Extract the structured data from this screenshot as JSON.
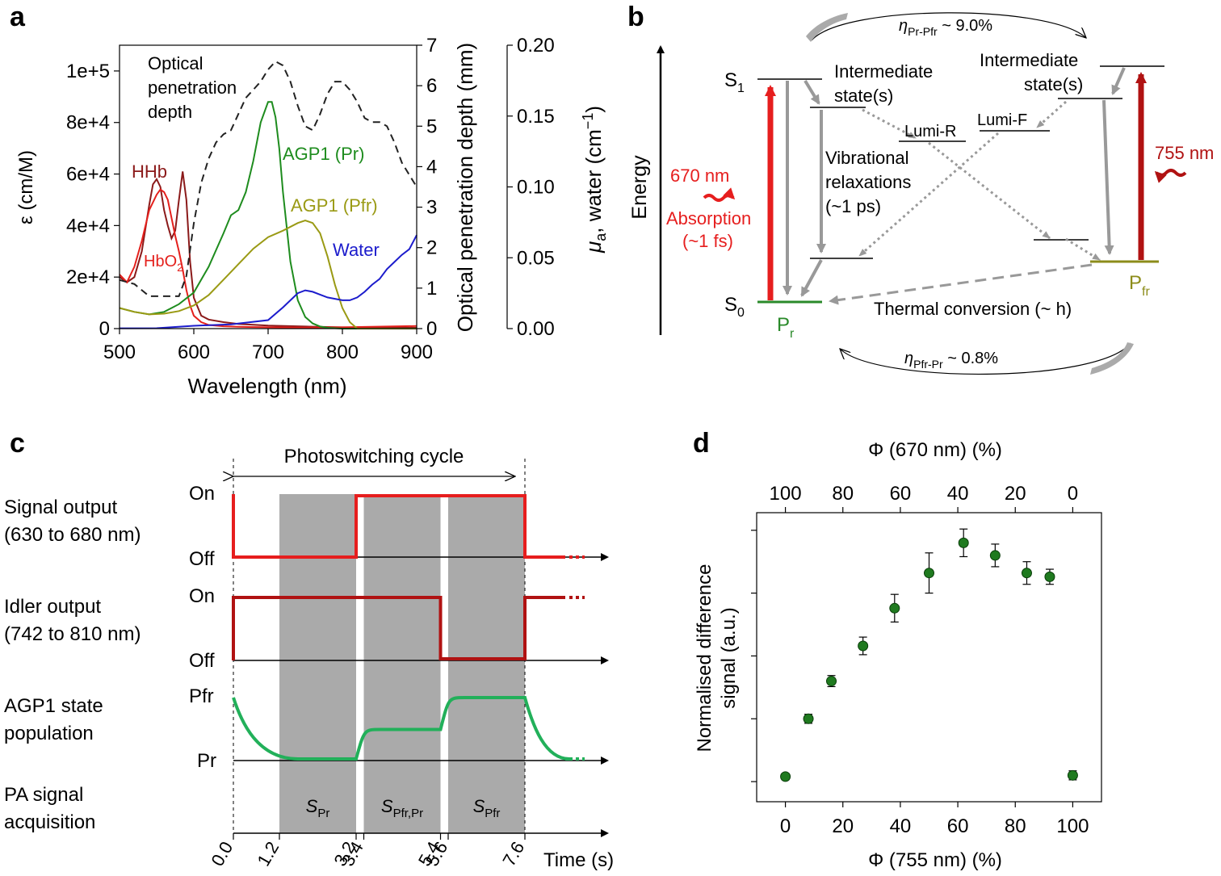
{
  "panel_labels": {
    "a": "a",
    "b": "b",
    "c": "c",
    "d": "d"
  },
  "colors": {
    "hhb": "#8b1a1a",
    "hbo2": "#e4201c",
    "agp1_pr": "#1e8c1e",
    "agp1_pfr": "#9a9a14",
    "water": "#1c1ccc",
    "red": "#e61e1e",
    "darkred": "#b01212",
    "green": "#22b05a",
    "gray": "#aaaaaa",
    "marker": "#1f7a1f",
    "pfr_line": "#8c8c1a"
  },
  "chart_data": [
    {
      "id": "a",
      "type": "line",
      "xlabel": "Wavelength (nm)",
      "ylabel_left": "ε (cm/M)",
      "ylabel_right1": "Optical penetration depth (mm)",
      "ylabel_right2_main": "μ",
      "ylabel_right2_sub": "a",
      "ylabel_right2_rest": ", water (cm",
      "ylabel_right2_sup": "−1",
      "ylabel_right2_end": ")",
      "xlim": [
        500,
        900
      ],
      "ylim_left": [
        0,
        110000
      ],
      "ylim_right1": [
        0,
        7
      ],
      "ylim_right2": [
        0,
        0.2
      ],
      "x_ticks": [
        "500",
        "600",
        "700",
        "800",
        "900"
      ],
      "x_tick_values": [
        500,
        600,
        700,
        800,
        900
      ],
      "y_left_ticks": [
        "0",
        "2e+4",
        "4e+4",
        "6e+4",
        "8e+4",
        "1e+5"
      ],
      "y_left_tick_values": [
        0,
        20000,
        40000,
        60000,
        80000,
        100000
      ],
      "y_right1_ticks": [
        "0",
        "1",
        "2",
        "3",
        "4",
        "5",
        "6",
        "7"
      ],
      "y_right1_tick_values": [
        0,
        1,
        2,
        3,
        4,
        5,
        6,
        7
      ],
      "y_right2_ticks": [
        "0.00",
        "0.05",
        "0.10",
        "0.15",
        "0.20"
      ],
      "y_right2_tick_values": [
        0,
        0.05,
        0.1,
        0.15,
        0.2
      ],
      "labels": {
        "optical_line1": "Optical",
        "optical_line2": "penetration",
        "optical_line3": "depth",
        "hhb": "HHb",
        "hbo2_main": "HbO",
        "hbo2_sub": "2",
        "agp1_pr": "AGP1 (Pr)",
        "agp1_pfr": "AGP1 (Pfr)",
        "water": "Water"
      },
      "series": [
        {
          "name": "HHb",
          "axis": "left",
          "color": "#8b1a1a",
          "x": [
            500,
            510,
            520,
            530,
            540,
            545,
            550,
            555,
            560,
            565,
            570,
            575,
            580,
            585,
            590,
            595,
            600,
            610,
            620,
            640,
            660,
            700,
            750,
            800,
            900
          ],
          "y": [
            20000,
            18000,
            20000,
            30000,
            48000,
            56000,
            58000,
            55000,
            46000,
            40000,
            35000,
            38000,
            50000,
            61000,
            50000,
            26000,
            12000,
            5000,
            3500,
            2500,
            1800,
            1200,
            800,
            500,
            300
          ]
        },
        {
          "name": "HbO2",
          "axis": "left",
          "color": "#e4201c",
          "x": [
            500,
            510,
            520,
            530,
            540,
            550,
            555,
            560,
            565,
            570,
            575,
            580,
            585,
            590,
            595,
            600,
            610,
            620,
            640,
            660,
            680,
            700,
            750,
            800,
            900
          ],
          "y": [
            21000,
            18000,
            24000,
            34000,
            46000,
            52000,
            54000,
            53000,
            50000,
            43000,
            36000,
            30000,
            23000,
            15000,
            9000,
            5000,
            2500,
            1400,
            900,
            700,
            600,
            500,
            400,
            500,
            1000
          ]
        },
        {
          "name": "Optical penetration depth",
          "axis": "right1",
          "dashed": true,
          "color": "#222222",
          "x": [
            500,
            520,
            540,
            560,
            580,
            590,
            600,
            610,
            620,
            630,
            640,
            650,
            660,
            670,
            680,
            690,
            700,
            710,
            720,
            730,
            740,
            750,
            760,
            770,
            780,
            790,
            800,
            810,
            820,
            830,
            840,
            850,
            860,
            870,
            880,
            890,
            900
          ],
          "y": [
            1.2,
            1.1,
            0.8,
            0.8,
            0.8,
            1.3,
            2.6,
            3.6,
            4.2,
            4.6,
            4.8,
            4.9,
            5.3,
            5.7,
            5.9,
            6.1,
            6.4,
            6.6,
            6.5,
            6.1,
            5.5,
            5.0,
            4.9,
            5.3,
            5.8,
            6.1,
            6.1,
            5.9,
            5.6,
            5.2,
            5.1,
            5.1,
            5.0,
            4.6,
            4.1,
            3.8,
            3.5
          ]
        },
        {
          "name": "AGP1 (Pr)",
          "axis": "left",
          "color": "#1e8c1e",
          "x": [
            500,
            520,
            540,
            560,
            580,
            600,
            620,
            640,
            650,
            660,
            670,
            680,
            690,
            700,
            705,
            710,
            715,
            720,
            730,
            740,
            750,
            760,
            770,
            780,
            800,
            900
          ],
          "y": [
            8000,
            6500,
            5500,
            6500,
            9500,
            14000,
            24000,
            37000,
            44000,
            46000,
            53000,
            65000,
            80000,
            88000,
            88000,
            82000,
            70000,
            53000,
            26000,
            11000,
            4500,
            2000,
            800,
            300,
            0,
            0
          ]
        },
        {
          "name": "AGP1 (Pfr)",
          "axis": "left",
          "color": "#9a9a14",
          "x": [
            500,
            520,
            540,
            560,
            580,
            600,
            620,
            640,
            660,
            680,
            700,
            720,
            740,
            750,
            760,
            770,
            780,
            790,
            800,
            810,
            820,
            900
          ],
          "y": [
            8000,
            6500,
            5500,
            5800,
            6800,
            9000,
            13000,
            19000,
            25000,
            31000,
            35500,
            38000,
            41000,
            42000,
            41000,
            37000,
            28000,
            17000,
            8000,
            2500,
            0,
            0
          ]
        },
        {
          "name": "Water",
          "axis": "right2",
          "color": "#1c1ccc",
          "x": [
            500,
            550,
            600,
            650,
            700,
            720,
            740,
            750,
            760,
            770,
            780,
            790,
            800,
            810,
            820,
            830,
            840,
            850,
            860,
            870,
            880,
            890,
            900
          ],
          "y": [
            0.0002,
            0.0003,
            0.002,
            0.003,
            0.006,
            0.015,
            0.025,
            0.027,
            0.026,
            0.024,
            0.022,
            0.021,
            0.02,
            0.02,
            0.022,
            0.026,
            0.031,
            0.035,
            0.042,
            0.047,
            0.052,
            0.056,
            0.066
          ]
        }
      ]
    },
    {
      "id": "b",
      "type": "diagram",
      "energy_label": "Energy",
      "s1_main": "S",
      "s1_sub": "1",
      "s0_main": "S",
      "s0_sub": "0",
      "pr_main": "P",
      "pr_sub": "r",
      "pfr_main": "P",
      "pfr_sub": "fr",
      "inter_left_line1": "Intermediate",
      "inter_left_line2": "state(s)",
      "inter_right_line1": "Intermediate",
      "inter_right_line2": "state(s)",
      "lumi_r": "Lumi-R",
      "lumi_f": "Lumi-F",
      "vib_line1": "Vibrational",
      "vib_line2": "relaxations",
      "vib_line3": "(~1 ps)",
      "wl_670": "670 nm",
      "absorption_line1": "Absorption",
      "absorption_line2": "(~1 fs)",
      "wl_755": "755 nm",
      "thermal": "Thermal conversion (~ h)",
      "eta_top_main": "η",
      "eta_top_sub": "Pr-Pfr",
      "eta_top_value": " ~ 9.0%",
      "eta_bottom_main": "η",
      "eta_bottom_sub": "Pfr-Pr",
      "eta_bottom_value": " ~ 0.8%"
    },
    {
      "id": "c",
      "type": "timing",
      "cycle_label": "Photoswitching cycle",
      "row_signal_line1": "Signal output",
      "row_signal_line2": "(630 to 680 nm)",
      "row_idler_line1": "Idler output",
      "row_idler_line2": "(742 to 810 nm)",
      "row_state_line1": "AGP1 state",
      "row_state_line2": "population",
      "row_pa_line1": "PA signal",
      "row_pa_line2": "acquisition",
      "on_label": "On",
      "off_label": "Off",
      "pfr_label": "Pfr",
      "pr_label": "Pr",
      "time_label": "Time (s)",
      "time_ticks": [
        "0.0",
        "1.2",
        "3.2",
        "3.4",
        "5.4",
        "5.6",
        "7.6"
      ],
      "time_values": [
        0,
        1.2,
        3.2,
        3.4,
        5.4,
        5.6,
        7.6
      ],
      "windows": [
        {
          "start": 1.2,
          "end": 3.2,
          "label_main": "S",
          "label_sub": "Pr"
        },
        {
          "start": 3.4,
          "end": 5.4,
          "label_main": "S",
          "label_sub": "Pfr,Pr"
        },
        {
          "start": 5.6,
          "end": 7.6,
          "label_main": "S",
          "label_sub": "Pfr"
        }
      ],
      "signal_on_interval": [
        3.2,
        7.6
      ],
      "idler_on_interval": [
        0,
        5.4
      ],
      "state_levels": {
        "start": 1.0,
        "after_first": 0.0,
        "after_second": 0.48,
        "after_third": 1.0
      }
    },
    {
      "id": "d",
      "type": "scatter",
      "xlabel": "Φ (755 nm) (%)",
      "xlabel_top": "Φ (670 nm) (%)",
      "ylabel_line1": "Normalised difference",
      "ylabel_line2": "signal (a.u.)",
      "xlim": [
        -10,
        110
      ],
      "ylim": [
        0,
        1.15
      ],
      "x_ticks": [
        "0",
        "20",
        "40",
        "60",
        "80",
        "100"
      ],
      "x_tick_values": [
        0,
        20,
        40,
        60,
        80,
        100
      ],
      "x_top_ticks": [
        "100",
        "80",
        "60",
        "40",
        "20",
        "0"
      ],
      "x_top_tick_values": [
        0,
        20,
        40,
        60,
        80,
        100
      ],
      "y_tick_values": [
        0.08,
        0.33,
        0.58,
        0.83,
        1.08
      ],
      "points": [
        {
          "x": 0,
          "y": 0.1,
          "err": 0.012
        },
        {
          "x": 8,
          "y": 0.33,
          "err": 0.018
        },
        {
          "x": 16,
          "y": 0.48,
          "err": 0.022
        },
        {
          "x": 27,
          "y": 0.62,
          "err": 0.035
        },
        {
          "x": 38,
          "y": 0.77,
          "err": 0.055
        },
        {
          "x": 50,
          "y": 0.91,
          "err": 0.08
        },
        {
          "x": 62,
          "y": 1.03,
          "err": 0.055
        },
        {
          "x": 73,
          "y": 0.98,
          "err": 0.045
        },
        {
          "x": 84,
          "y": 0.91,
          "err": 0.045
        },
        {
          "x": 92,
          "y": 0.895,
          "err": 0.03
        },
        {
          "x": 100,
          "y": 0.105,
          "err": 0.018
        }
      ]
    }
  ]
}
